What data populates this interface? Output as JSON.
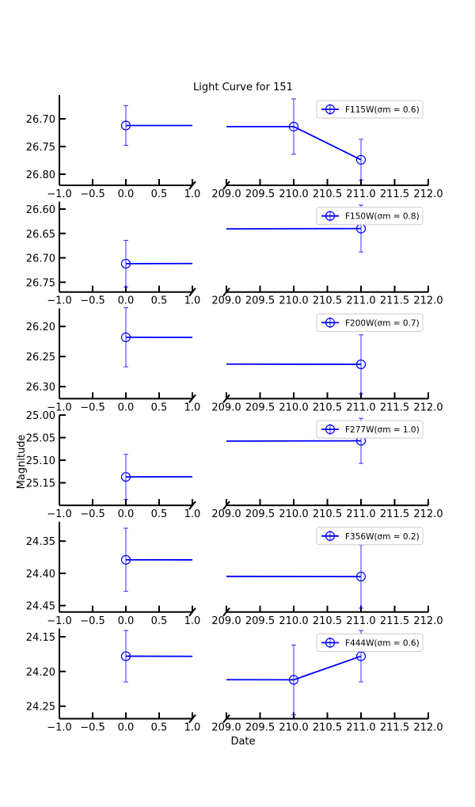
{
  "chart_data": {
    "type": "line",
    "title": "Light Curve for 151",
    "xlabel": "Date",
    "ylabel": "Magnitude",
    "y_inverted": true,
    "broken_x_axis": true,
    "grid": false,
    "legend_placement": "top-right",
    "color": "#0000ff",
    "x_ranges": [
      [
        -1.0,
        1.0
      ],
      [
        209.0,
        212.0
      ]
    ],
    "x_ticks_left": [
      "−1.0",
      "−0.5",
      "0.0",
      "0.5",
      "1.0"
    ],
    "x_ticks_right": [
      "209.0",
      "209.5",
      "210.0",
      "210.5",
      "211.0",
      "211.5",
      "212.0"
    ],
    "panels": [
      {
        "filter": "F115W",
        "legend": "F115W(σm = 0.6)",
        "ylim": [
          26.82,
          26.657
        ],
        "yticks": [
          "26.70",
          "26.75",
          "26.80"
        ],
        "x": [
          0.0,
          210.0,
          211.0
        ],
        "y": [
          26.712,
          26.714,
          26.774
        ],
        "yerr": [
          0.036,
          0.05,
          0.037
        ]
      },
      {
        "filter": "F150W",
        "legend": "F150W(σm = 0.8)",
        "ylim": [
          26.77,
          26.585
        ],
        "yticks": [
          "26.60",
          "26.65",
          "26.70",
          "26.75"
        ],
        "x": [
          0.0,
          211.0
        ],
        "y": [
          26.712,
          26.64
        ],
        "yerr": [
          0.048,
          0.048
        ]
      },
      {
        "filter": "F200W",
        "legend": "F200W(σm = 0.7)",
        "ylim": [
          26.32,
          26.17
        ],
        "yticks": [
          "26.20",
          "26.25",
          "26.30"
        ],
        "x": [
          0.0,
          211.0
        ],
        "y": [
          26.218,
          26.263
        ],
        "yerr": [
          0.049,
          0.049
        ]
      },
      {
        "filter": "F277W",
        "legend": "F277W(σm = 1.0)",
        "ylim": [
          25.2,
          25.0
        ],
        "yticks": [
          "25.00",
          "25.05",
          "25.10",
          "25.15"
        ],
        "x": [
          0.0,
          211.0
        ],
        "y": [
          25.137,
          25.057
        ],
        "yerr": [
          0.05,
          0.05
        ]
      },
      {
        "filter": "F356W",
        "legend": "F356W(σm = 0.2)",
        "ylim": [
          24.46,
          24.32
        ],
        "yticks": [
          "24.35",
          "24.40",
          "24.45"
        ],
        "x": [
          0.0,
          211.0
        ],
        "y": [
          24.379,
          24.405
        ],
        "yerr": [
          0.049,
          0.049
        ]
      },
      {
        "filter": "F444W",
        "legend": "F444W(σm = 0.6)",
        "ylim": [
          24.268,
          24.138
        ],
        "yticks": [
          "24.15",
          "24.20",
          "24.25"
        ],
        "x": [
          0.0,
          210.0,
          211.0
        ],
        "y": [
          24.178,
          24.212,
          24.178
        ],
        "yerr": [
          0.037,
          0.05,
          0.037
        ]
      }
    ]
  }
}
